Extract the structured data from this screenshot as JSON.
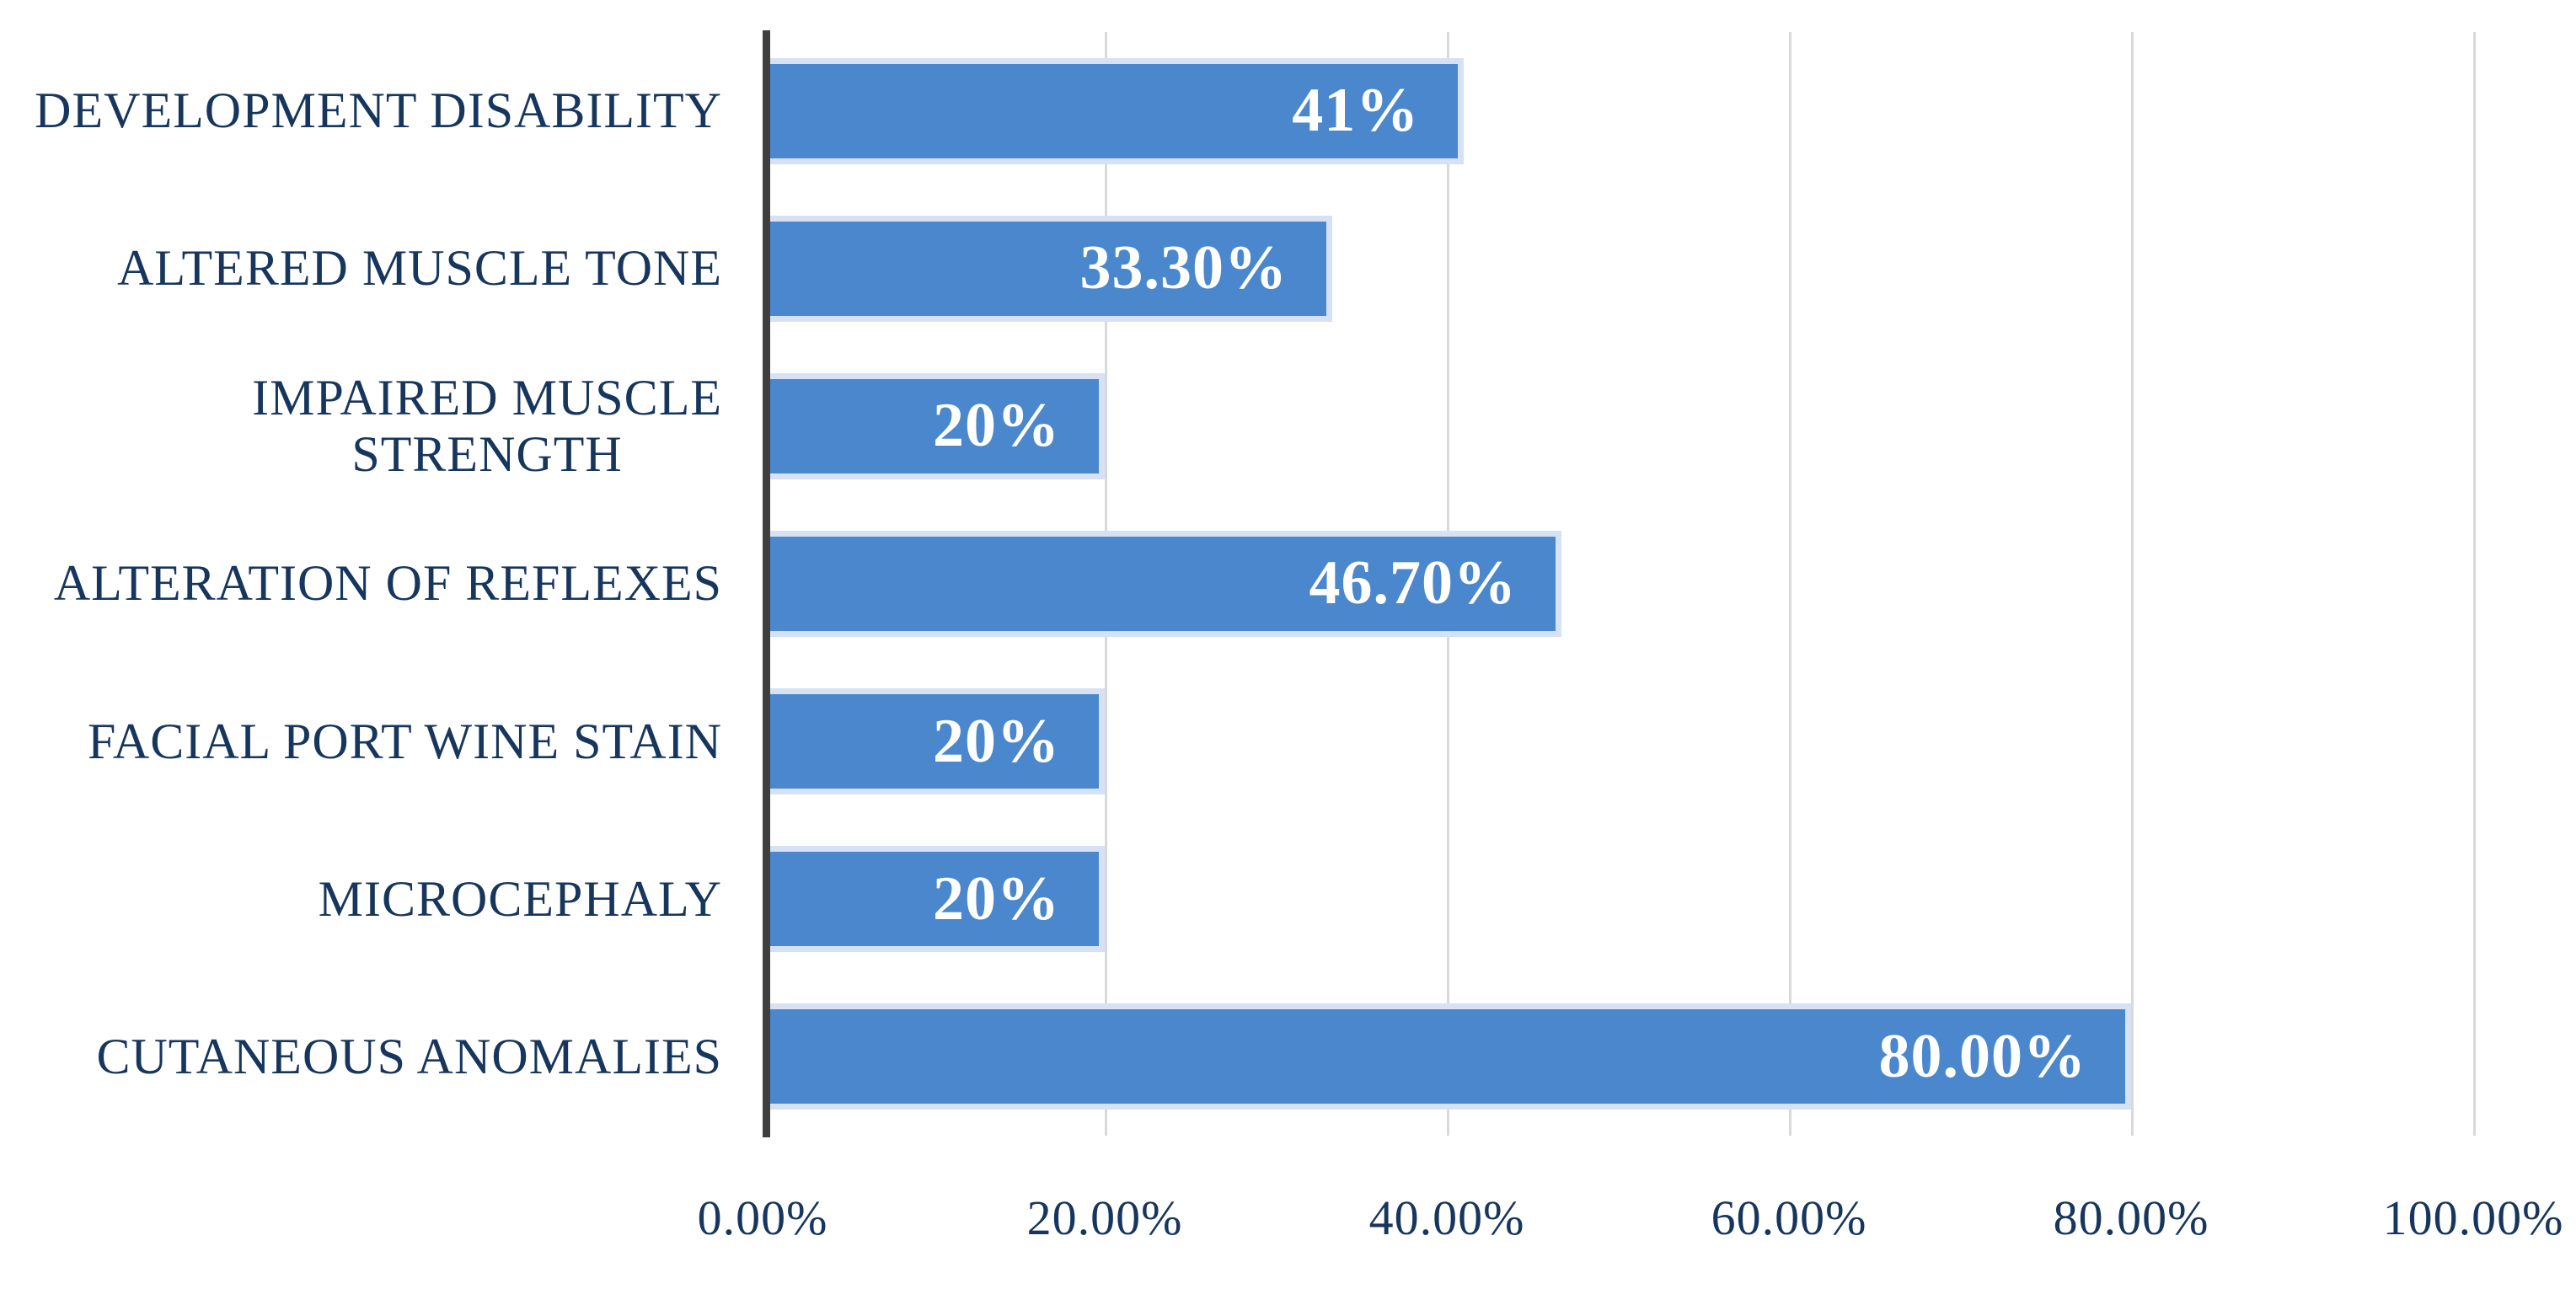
{
  "chart_data": {
    "type": "bar",
    "orientation": "horizontal",
    "title": "",
    "xlabel": "",
    "ylabel": "",
    "xlim": [
      0,
      100
    ],
    "grid": "vertical",
    "legend": "none",
    "categories": [
      "DEVELOPMENT DISABILITY",
      "ALTERED MUSCLE TONE",
      "IMPAIRED MUSCLE\nSTRENGTH",
      "ALTERATION OF REFLEXES",
      "FACIAL PORT WINE STAIN",
      "MICROCEPHALY",
      "CUTANEOUS ANOMALIES"
    ],
    "values": [
      41,
      33.3,
      20,
      46.7,
      20,
      20,
      80
    ],
    "bar_labels": [
      "41%",
      "33.30%",
      "20%",
      "46.70%",
      "20%",
      "20%",
      "80.00%"
    ],
    "x_ticks": [
      "0.00%",
      "20.00%",
      "40.00%",
      "60.00%",
      "80.00%",
      "100.00%"
    ],
    "x_tick_values": [
      0,
      20,
      40,
      60,
      80,
      100
    ],
    "colors": {
      "bar_fill": "#4A87CD",
      "bar_border": "#D6E2F4",
      "category_text": "#17365D",
      "value_text": "#FFFFFF",
      "tick_text": "#17365D",
      "gridline": "#D9D9D9",
      "axis_line": "#3F3F3F",
      "background": "#FFFFFF"
    }
  }
}
